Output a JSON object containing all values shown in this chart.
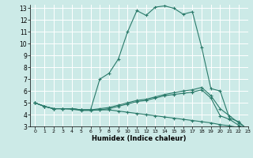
{
  "title": "",
  "xlabel": "Humidex (Indice chaleur)",
  "ylabel": "",
  "xlim": [
    -0.5,
    23
  ],
  "ylim": [
    3,
    13.3
  ],
  "yticks": [
    3,
    4,
    5,
    6,
    7,
    8,
    9,
    10,
    11,
    12,
    13
  ],
  "xticks": [
    0,
    1,
    2,
    3,
    4,
    5,
    6,
    7,
    8,
    9,
    10,
    11,
    12,
    13,
    14,
    15,
    16,
    17,
    18,
    19,
    20,
    21,
    22,
    23
  ],
  "background_color": "#cceae7",
  "grid_color": "#ffffff",
  "line_color": "#2a7a6a",
  "line1_y": [
    5.0,
    4.7,
    4.5,
    4.5,
    4.5,
    4.4,
    4.4,
    7.0,
    7.5,
    8.7,
    11.0,
    12.8,
    12.4,
    13.1,
    13.2,
    13.0,
    12.5,
    12.7,
    9.7,
    6.2,
    6.0,
    3.7,
    3.4,
    2.7
  ],
  "line2_y": [
    5.0,
    4.7,
    4.5,
    4.5,
    4.5,
    4.4,
    4.4,
    4.4,
    4.5,
    4.7,
    4.9,
    5.1,
    5.2,
    5.4,
    5.6,
    5.7,
    5.8,
    5.9,
    6.1,
    5.4,
    3.9,
    3.6,
    3.1,
    2.7
  ],
  "line3_y": [
    5.0,
    4.7,
    4.5,
    4.5,
    4.5,
    4.4,
    4.4,
    4.5,
    4.6,
    4.8,
    5.0,
    5.2,
    5.3,
    5.5,
    5.7,
    5.85,
    6.0,
    6.1,
    6.3,
    5.6,
    4.5,
    3.9,
    3.3,
    2.75
  ],
  "line4_y": [
    5.0,
    4.7,
    4.5,
    4.5,
    4.45,
    4.35,
    4.35,
    4.4,
    4.4,
    4.3,
    4.2,
    4.1,
    4.0,
    3.9,
    3.8,
    3.7,
    3.6,
    3.5,
    3.4,
    3.3,
    3.15,
    3.05,
    2.9,
    2.75
  ]
}
